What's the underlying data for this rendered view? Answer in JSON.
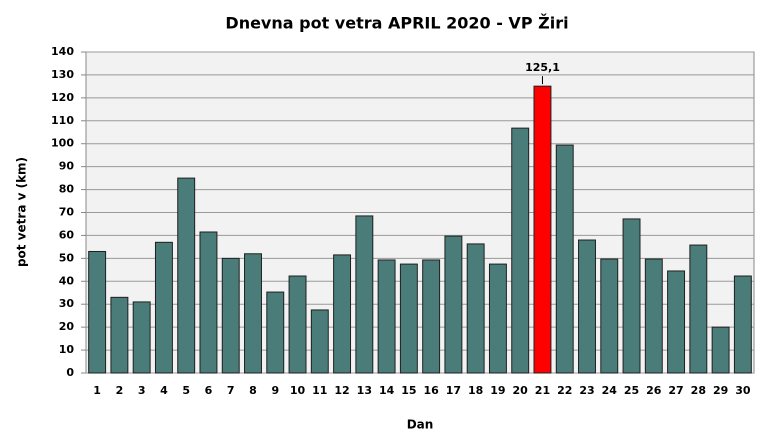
{
  "chart_data": {
    "type": "bar",
    "title": "Dnevna pot vetra APRIL 2020 - VP Žiri",
    "x_label": "Dan",
    "y_label": "pot vetra  v (km)",
    "categories": [
      "1",
      "2",
      "3",
      "4",
      "5",
      "6",
      "7",
      "8",
      "9",
      "10",
      "11",
      "12",
      "13",
      "14",
      "15",
      "16",
      "17",
      "18",
      "19",
      "20",
      "21",
      "22",
      "23",
      "24",
      "25",
      "26",
      "27",
      "28",
      "29",
      "30"
    ],
    "values": [
      53,
      33,
      31,
      57,
      85,
      61.5,
      50,
      52,
      35.3,
      42.3,
      27.5,
      51.5,
      68.5,
      49.3,
      47.5,
      49.3,
      59.7,
      56.3,
      47.5,
      106.8,
      125.1,
      99.4,
      58,
      49.7,
      67.2,
      49.7,
      44.5,
      55.8,
      20,
      42.3
    ],
    "value_labels": [
      null,
      null,
      null,
      null,
      null,
      null,
      null,
      null,
      null,
      null,
      null,
      null,
      null,
      null,
      null,
      null,
      null,
      null,
      null,
      null,
      "125,1",
      null,
      null,
      null,
      null,
      null,
      null,
      null,
      null,
      null
    ],
    "colors": [
      "#4a7d79",
      "#4a7d79",
      "#4a7d79",
      "#4a7d79",
      "#4a7d79",
      "#4a7d79",
      "#4a7d79",
      "#4a7d79",
      "#4a7d79",
      "#4a7d79",
      "#4a7d79",
      "#4a7d79",
      "#4a7d79",
      "#4a7d79",
      "#4a7d79",
      "#4a7d79",
      "#4a7d79",
      "#4a7d79",
      "#4a7d79",
      "#4a7d79",
      "#ff0000",
      "#4a7d79",
      "#4a7d79",
      "#4a7d79",
      "#4a7d79",
      "#4a7d79",
      "#4a7d79",
      "#4a7d79",
      "#4a7d79",
      "#4a7d79"
    ],
    "ylim": [
      0,
      140
    ],
    "yticks": [
      0,
      10,
      20,
      30,
      40,
      50,
      60,
      70,
      80,
      90,
      100,
      110,
      120,
      130,
      140
    ],
    "grid": true
  }
}
